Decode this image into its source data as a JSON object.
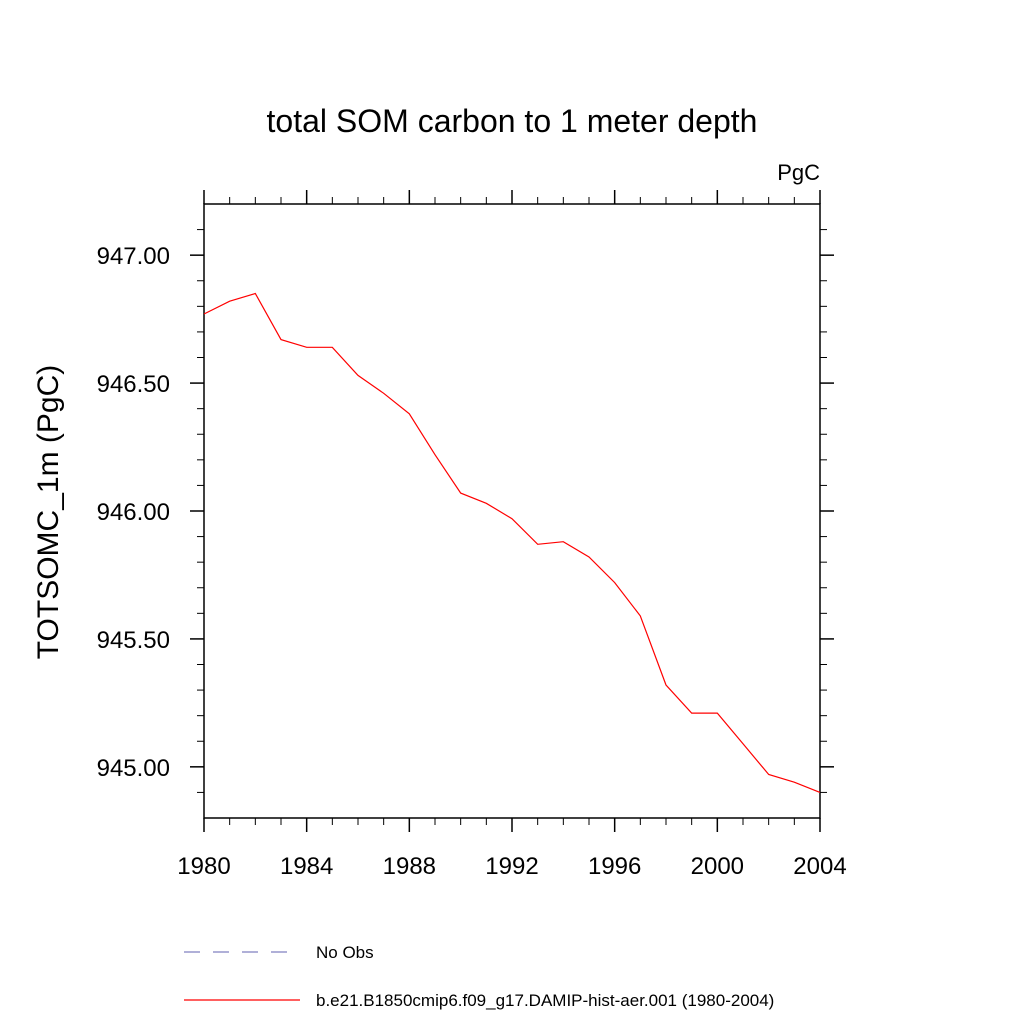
{
  "chart_data": {
    "type": "line",
    "title": "total SOM carbon to 1 meter depth",
    "units": "PgC",
    "ylabel": "TOTSOMC_1m  (PgC)",
    "xlabel": "",
    "xlim": [
      1980,
      2004
    ],
    "ylim": [
      944.8,
      947.2
    ],
    "x_ticks": [
      1980,
      1984,
      1988,
      1992,
      1996,
      2000,
      2004
    ],
    "x_tick_labels": [
      "1980",
      "1984",
      "1988",
      "1992",
      "1996",
      "2000",
      "2004"
    ],
    "y_ticks": [
      945.0,
      945.5,
      946.0,
      946.5,
      947.0
    ],
    "y_tick_labels": [
      "945.00",
      "945.50",
      "946.00",
      "946.50",
      "947.00"
    ],
    "grid": false,
    "legend_position": "bottom",
    "series": [
      {
        "name": "b.e21.B1850cmip6.f09_g17.DAMIP-hist-aer.001 (1980-2004)",
        "color": "#ff0000",
        "dash": "solid",
        "x": [
          1980,
          1981,
          1982,
          1983,
          1984,
          1985,
          1986,
          1987,
          1988,
          1989,
          1990,
          1991,
          1992,
          1993,
          1994,
          1995,
          1996,
          1997,
          1998,
          1999,
          2000,
          2001,
          2002,
          2003,
          2004
        ],
        "y": [
          946.77,
          946.82,
          946.85,
          946.67,
          946.64,
          946.64,
          946.53,
          946.46,
          946.38,
          946.22,
          946.07,
          946.03,
          945.97,
          945.87,
          945.88,
          945.82,
          945.72,
          945.59,
          945.32,
          945.21,
          945.21,
          945.09,
          944.97,
          944.94,
          944.9
        ]
      }
    ],
    "legend": [
      {
        "label": "No Obs",
        "color": "#8080c0",
        "dash": "dashed"
      },
      {
        "label": "b.e21.B1850cmip6.f09_g17.DAMIP-hist-aer.001 (1980-2004)",
        "color": "#ff0000",
        "dash": "solid"
      }
    ]
  }
}
